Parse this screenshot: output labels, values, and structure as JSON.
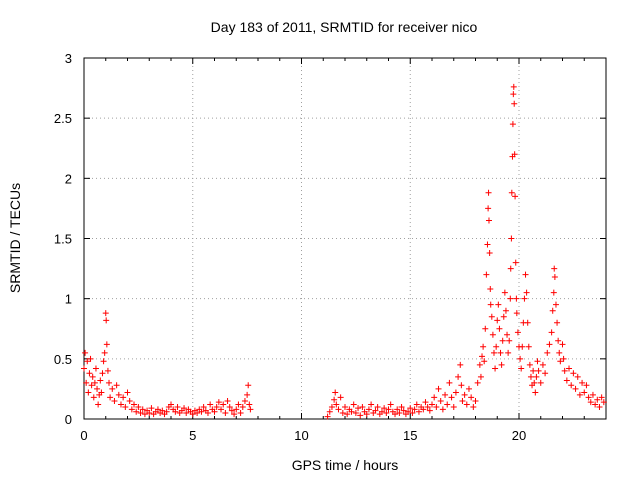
{
  "chart_data": {
    "type": "scatter",
    "title": "Day 183 of 2011, SRMTID for receiver nico",
    "xlabel": "GPS time / hours",
    "ylabel": "SRMTID / TECUs",
    "xlim": [
      0,
      24
    ],
    "ylim": [
      0,
      3
    ],
    "x_ticks": [
      0,
      5,
      10,
      15,
      20
    ],
    "x_tick_labels": [
      "0",
      "5",
      "10",
      "15",
      "20"
    ],
    "y_ticks": [
      0,
      0.5,
      1,
      1.5,
      2,
      2.5,
      3
    ],
    "y_tick_labels": [
      "0",
      "0.5",
      "1",
      "1.5",
      "2",
      "2.5",
      "3"
    ],
    "grid": true,
    "marker": "+",
    "color": "#ff0000",
    "series": [
      {
        "name": "SRMTID",
        "points": [
          [
            0.0,
            0.42
          ],
          [
            0.05,
            0.55
          ],
          [
            0.1,
            0.3
          ],
          [
            0.15,
            0.48
          ],
          [
            0.2,
            0.22
          ],
          [
            0.25,
            0.38
          ],
          [
            0.3,
            0.5
          ],
          [
            0.35,
            0.28
          ],
          [
            0.4,
            0.35
          ],
          [
            0.45,
            0.18
          ],
          [
            0.5,
            0.3
          ],
          [
            0.55,
            0.42
          ],
          [
            0.6,
            0.25
          ],
          [
            0.65,
            0.12
          ],
          [
            0.7,
            0.2
          ],
          [
            0.75,
            0.32
          ],
          [
            0.8,
            0.22
          ],
          [
            0.85,
            0.38
          ],
          [
            0.9,
            0.48
          ],
          [
            0.95,
            0.55
          ],
          [
            1.0,
            0.88
          ],
          [
            1.02,
            0.82
          ],
          [
            1.05,
            0.62
          ],
          [
            1.1,
            0.4
          ],
          [
            1.15,
            0.3
          ],
          [
            1.2,
            0.18
          ],
          [
            1.3,
            0.25
          ],
          [
            1.4,
            0.15
          ],
          [
            1.5,
            0.28
          ],
          [
            1.6,
            0.2
          ],
          [
            1.7,
            0.12
          ],
          [
            1.8,
            0.18
          ],
          [
            1.9,
            0.1
          ],
          [
            2.0,
            0.22
          ],
          [
            2.1,
            0.15
          ],
          [
            2.2,
            0.08
          ],
          [
            2.3,
            0.12
          ],
          [
            2.4,
            0.06
          ],
          [
            2.5,
            0.1
          ],
          [
            2.6,
            0.05
          ],
          [
            2.7,
            0.08
          ],
          [
            2.8,
            0.04
          ],
          [
            2.9,
            0.07
          ],
          [
            3.0,
            0.05
          ],
          [
            3.1,
            0.09
          ],
          [
            3.2,
            0.04
          ],
          [
            3.3,
            0.06
          ],
          [
            3.4,
            0.08
          ],
          [
            3.5,
            0.05
          ],
          [
            3.6,
            0.07
          ],
          [
            3.7,
            0.04
          ],
          [
            3.8,
            0.06
          ],
          [
            3.9,
            0.1
          ],
          [
            4.0,
            0.12
          ],
          [
            4.1,
            0.08
          ],
          [
            4.2,
            0.06
          ],
          [
            4.3,
            0.1
          ],
          [
            4.4,
            0.05
          ],
          [
            4.5,
            0.07
          ],
          [
            4.6,
            0.09
          ],
          [
            4.7,
            0.05
          ],
          [
            4.8,
            0.08
          ],
          [
            4.9,
            0.06
          ],
          [
            5.0,
            0.04
          ],
          [
            5.1,
            0.07
          ],
          [
            5.2,
            0.05
          ],
          [
            5.3,
            0.08
          ],
          [
            5.4,
            0.06
          ],
          [
            5.5,
            0.1
          ],
          [
            5.6,
            0.07
          ],
          [
            5.7,
            0.05
          ],
          [
            5.8,
            0.12
          ],
          [
            5.9,
            0.08
          ],
          [
            6.0,
            0.06
          ],
          [
            6.1,
            0.1
          ],
          [
            6.2,
            0.14
          ],
          [
            6.3,
            0.08
          ],
          [
            6.4,
            0.12
          ],
          [
            6.5,
            0.05
          ],
          [
            6.6,
            0.15
          ],
          [
            6.7,
            0.1
          ],
          [
            6.8,
            0.07
          ],
          [
            6.9,
            0.04
          ],
          [
            7.0,
            0.08
          ],
          [
            7.1,
            0.12
          ],
          [
            7.2,
            0.05
          ],
          [
            7.3,
            0.1
          ],
          [
            7.4,
            0.15
          ],
          [
            7.5,
            0.2
          ],
          [
            7.55,
            0.28
          ],
          [
            7.6,
            0.12
          ],
          [
            7.65,
            0.08
          ],
          [
            11.2,
            0.02
          ],
          [
            11.3,
            0.06
          ],
          [
            11.4,
            0.1
          ],
          [
            11.5,
            0.16
          ],
          [
            11.55,
            0.22
          ],
          [
            11.6,
            0.12
          ],
          [
            11.7,
            0.08
          ],
          [
            11.8,
            0.18
          ],
          [
            11.9,
            0.05
          ],
          [
            12.0,
            0.1
          ],
          [
            12.1,
            0.04
          ],
          [
            12.2,
            0.08
          ],
          [
            12.3,
            0.06
          ],
          [
            12.4,
            0.12
          ],
          [
            12.5,
            0.05
          ],
          [
            12.6,
            0.09
          ],
          [
            12.7,
            0.03
          ],
          [
            12.8,
            0.1
          ],
          [
            12.9,
            0.06
          ],
          [
            13.0,
            0.04
          ],
          [
            13.1,
            0.08
          ],
          [
            13.2,
            0.12
          ],
          [
            13.3,
            0.05
          ],
          [
            13.4,
            0.07
          ],
          [
            13.5,
            0.1
          ],
          [
            13.6,
            0.04
          ],
          [
            13.7,
            0.06
          ],
          [
            13.8,
            0.09
          ],
          [
            13.9,
            0.05
          ],
          [
            14.0,
            0.08
          ],
          [
            14.1,
            0.12
          ],
          [
            14.2,
            0.06
          ],
          [
            14.3,
            0.04
          ],
          [
            14.4,
            0.08
          ],
          [
            14.5,
            0.05
          ],
          [
            14.6,
            0.1
          ],
          [
            14.7,
            0.07
          ],
          [
            14.8,
            0.04
          ],
          [
            14.9,
            0.06
          ],
          [
            15.0,
            0.09
          ],
          [
            15.1,
            0.05
          ],
          [
            15.2,
            0.08
          ],
          [
            15.3,
            0.12
          ],
          [
            15.4,
            0.06
          ],
          [
            15.5,
            0.1
          ],
          [
            15.6,
            0.08
          ],
          [
            15.7,
            0.14
          ],
          [
            15.8,
            0.1
          ],
          [
            15.9,
            0.07
          ],
          [
            16.0,
            0.12
          ],
          [
            16.1,
            0.18
          ],
          [
            16.2,
            0.1
          ],
          [
            16.3,
            0.25
          ],
          [
            16.4,
            0.15
          ],
          [
            16.5,
            0.08
          ],
          [
            16.6,
            0.2
          ],
          [
            16.7,
            0.12
          ],
          [
            16.8,
            0.3
          ],
          [
            16.9,
            0.18
          ],
          [
            17.0,
            0.1
          ],
          [
            17.1,
            0.22
          ],
          [
            17.2,
            0.35
          ],
          [
            17.3,
            0.45
          ],
          [
            17.35,
            0.28
          ],
          [
            17.4,
            0.15
          ],
          [
            17.5,
            0.2
          ],
          [
            17.6,
            0.12
          ],
          [
            17.7,
            0.25
          ],
          [
            17.8,
            0.18
          ],
          [
            17.9,
            0.1
          ],
          [
            18.0,
            0.15
          ],
          [
            18.1,
            0.3
          ],
          [
            18.2,
            0.45
          ],
          [
            18.25,
            0.35
          ],
          [
            18.3,
            0.52
          ],
          [
            18.35,
            0.6
          ],
          [
            18.4,
            0.48
          ],
          [
            18.45,
            0.75
          ],
          [
            18.5,
            1.2
          ],
          [
            18.55,
            1.45
          ],
          [
            18.58,
            1.75
          ],
          [
            18.6,
            1.88
          ],
          [
            18.62,
            1.65
          ],
          [
            18.65,
            1.38
          ],
          [
            18.68,
            1.08
          ],
          [
            18.7,
            0.95
          ],
          [
            18.75,
            0.85
          ],
          [
            18.8,
            0.7
          ],
          [
            18.85,
            0.55
          ],
          [
            18.9,
            0.42
          ],
          [
            18.95,
            0.6
          ],
          [
            19.0,
            0.82
          ],
          [
            19.05,
            0.95
          ],
          [
            19.1,
            0.75
          ],
          [
            19.15,
            0.55
          ],
          [
            19.2,
            0.45
          ],
          [
            19.25,
            0.65
          ],
          [
            19.3,
            0.85
          ],
          [
            19.35,
            1.05
          ],
          [
            19.4,
            0.9
          ],
          [
            19.45,
            0.7
          ],
          [
            19.5,
            0.55
          ],
          [
            19.55,
            0.65
          ],
          [
            19.6,
            1.0
          ],
          [
            19.62,
            1.25
          ],
          [
            19.65,
            1.5
          ],
          [
            19.67,
            1.88
          ],
          [
            19.7,
            2.18
          ],
          [
            19.72,
            2.45
          ],
          [
            19.74,
            2.7
          ],
          [
            19.76,
            2.76
          ],
          [
            19.78,
            2.62
          ],
          [
            19.8,
            2.2
          ],
          [
            19.82,
            1.85
          ],
          [
            19.85,
            1.3
          ],
          [
            19.88,
            1.0
          ],
          [
            19.9,
            0.88
          ],
          [
            19.95,
            0.72
          ],
          [
            20.0,
            0.6
          ],
          [
            20.05,
            0.5
          ],
          [
            20.1,
            0.42
          ],
          [
            20.15,
            0.6
          ],
          [
            20.2,
            0.8
          ],
          [
            20.25,
            1.0
          ],
          [
            20.3,
            1.2
          ],
          [
            20.35,
            1.05
          ],
          [
            20.4,
            0.8
          ],
          [
            20.45,
            0.6
          ],
          [
            20.5,
            0.45
          ],
          [
            20.55,
            0.35
          ],
          [
            20.6,
            0.28
          ],
          [
            20.65,
            0.4
          ],
          [
            20.7,
            0.3
          ],
          [
            20.75,
            0.22
          ],
          [
            20.8,
            0.35
          ],
          [
            20.85,
            0.48
          ],
          [
            20.9,
            0.4
          ],
          [
            21.0,
            0.3
          ],
          [
            21.1,
            0.45
          ],
          [
            21.2,
            0.38
          ],
          [
            21.3,
            0.55
          ],
          [
            21.4,
            0.62
          ],
          [
            21.5,
            0.72
          ],
          [
            21.55,
            0.9
          ],
          [
            21.6,
            1.05
          ],
          [
            21.62,
            1.25
          ],
          [
            21.65,
            1.18
          ],
          [
            21.7,
            0.95
          ],
          [
            21.75,
            0.8
          ],
          [
            21.8,
            0.65
          ],
          [
            21.85,
            0.55
          ],
          [
            21.9,
            0.48
          ],
          [
            22.0,
            0.62
          ],
          [
            22.05,
            0.5
          ],
          [
            22.1,
            0.4
          ],
          [
            22.2,
            0.32
          ],
          [
            22.3,
            0.42
          ],
          [
            22.4,
            0.28
          ],
          [
            22.5,
            0.38
          ],
          [
            22.6,
            0.25
          ],
          [
            22.7,
            0.35
          ],
          [
            22.8,
            0.2
          ],
          [
            22.9,
            0.3
          ],
          [
            23.0,
            0.22
          ],
          [
            23.1,
            0.28
          ],
          [
            23.2,
            0.18
          ],
          [
            23.3,
            0.14
          ],
          [
            23.4,
            0.2
          ],
          [
            23.5,
            0.12
          ],
          [
            23.6,
            0.16
          ],
          [
            23.7,
            0.1
          ],
          [
            23.8,
            0.18
          ],
          [
            23.9,
            0.14
          ]
        ]
      }
    ]
  }
}
